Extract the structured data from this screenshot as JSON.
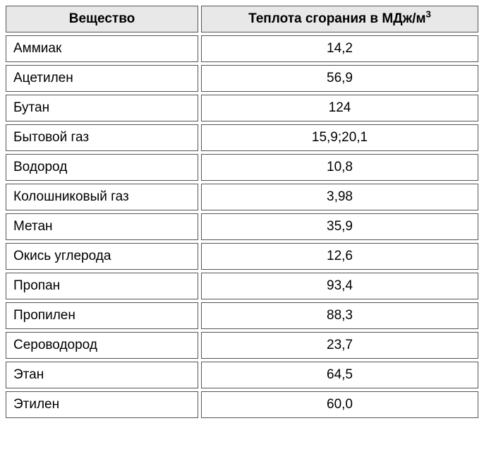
{
  "table": {
    "columns": [
      {
        "label": "Вещество"
      },
      {
        "label": "Теплота сгорания в МДж/м",
        "sup": "3"
      }
    ],
    "rows": [
      {
        "name": "Аммиак",
        "value": "14,2"
      },
      {
        "name": "Ацетилен",
        "value": "56,9"
      },
      {
        "name": "Бутан",
        "value": "124"
      },
      {
        "name": "Бытовой газ",
        "value": "15,9;20,1"
      },
      {
        "name": "Водород",
        "value": "10,8"
      },
      {
        "name": "Колошниковый газ",
        "value": "3,98"
      },
      {
        "name": "Метан",
        "value": "35,9"
      },
      {
        "name": "Окись углерода",
        "value": "12,6"
      },
      {
        "name": "Пропан",
        "value": "93,4"
      },
      {
        "name": "Пропилен",
        "value": "88,3"
      },
      {
        "name": "Сероводород",
        "value": "23,7"
      },
      {
        "name": "Этан",
        "value": "64,5"
      },
      {
        "name": "Этилен",
        "value": "60,0"
      }
    ],
    "style": {
      "header_bg": "#e8e8e8",
      "cell_bg": "#ffffff",
      "border_color": "#555555",
      "font_size": 19,
      "col1_width": 273
    }
  }
}
